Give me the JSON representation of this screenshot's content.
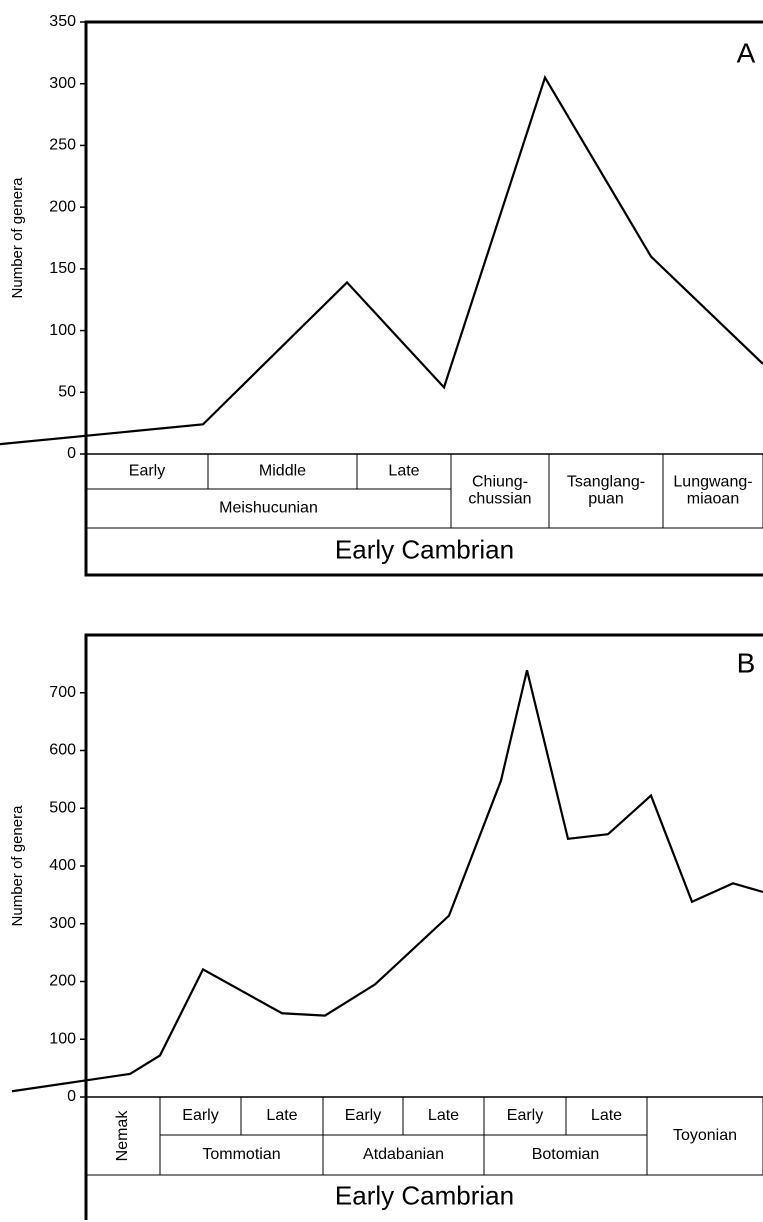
{
  "chart_data": [
    {
      "type": "line",
      "panel_label": "A",
      "ylabel": "Number of genera",
      "color": "#000000",
      "values": [
        8,
        24,
        139,
        54,
        305,
        160,
        73
      ],
      "ylim": [
        0,
        350
      ],
      "yticks": [
        0,
        50,
        100,
        150,
        200,
        250,
        300,
        350
      ],
      "stages": [
        [
          "Early"
        ],
        [
          "Middle"
        ],
        [
          "Late"
        ],
        [
          "Meishucunian"
        ],
        [
          "Chiung-",
          "chussian"
        ],
        [
          "Tsanglang-",
          "puan"
        ],
        [
          "Lungwang-",
          "miaoan"
        ]
      ],
      "era": "Early Cambrian"
    },
    {
      "type": "line",
      "panel_label": "B",
      "ylabel": "Number of genera",
      "color": "#000000",
      "values": [
        10,
        40,
        72,
        221,
        145,
        141,
        195,
        314,
        548,
        739,
        447,
        455,
        522,
        338,
        370,
        355
      ],
      "ylim": [
        0,
        800
      ],
      "yticks": [
        0,
        100,
        200,
        300,
        400,
        500,
        600,
        700
      ],
      "stages": [
        [
          "Nemak"
        ],
        [
          "Early"
        ],
        [
          "Late"
        ],
        [
          "Early"
        ],
        [
          "Late"
        ],
        [
          "Early"
        ],
        [
          "Late"
        ],
        [
          "Tommotian"
        ],
        [
          "Atdabanian"
        ],
        [
          "Botomian"
        ],
        [
          "Toyonian"
        ]
      ],
      "era": "Early Cambrian"
    }
  ]
}
